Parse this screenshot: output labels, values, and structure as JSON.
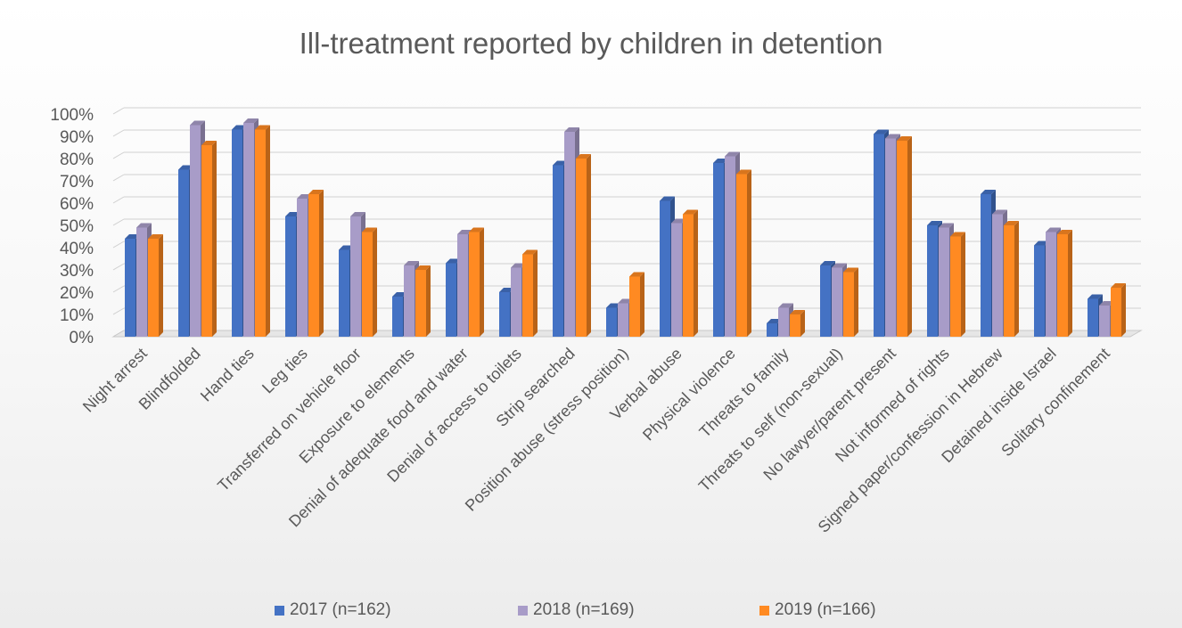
{
  "chart_data": {
    "type": "bar",
    "title": "Ill-treatment reported by children in detention",
    "xlabel": "",
    "ylabel": "",
    "ylim": [
      0,
      100
    ],
    "yticks": [
      "0%",
      "10%",
      "20%",
      "30%",
      "40%",
      "50%",
      "60%",
      "70%",
      "80%",
      "90%",
      "100%"
    ],
    "grid": true,
    "legend_position": "bottom",
    "categories": [
      "Night arrest",
      "Blindfolded",
      "Hand ties",
      "Leg ties",
      "Transferred on vehicle floor",
      "Exposure to elements",
      "Denial of adequate food and water",
      "Denial of access to toilets",
      "Strip searched",
      "Position abuse (stress position)",
      "Verbal abuse",
      "Physical violence",
      "Threats to family",
      "Threats to self (non-sexual)",
      "No lawyer/parent present",
      "Not informed of rights",
      "Signed paper/confession in Hebrew",
      "Detained inside Israel",
      "Solitary confinement"
    ],
    "series": [
      {
        "name": "2017 (n=162)",
        "color": "#4472c4",
        "values": [
          44,
          75,
          93,
          54,
          39,
          18,
          33,
          20,
          77,
          13,
          61,
          78,
          6,
          32,
          91,
          50,
          64,
          41,
          17
        ]
      },
      {
        "name": "2018 (n=169)",
        "color": "#a89cc8",
        "values": [
          49,
          95,
          96,
          62,
          54,
          32,
          46,
          31,
          92,
          15,
          51,
          81,
          13,
          31,
          89,
          49,
          55,
          47,
          14
        ]
      },
      {
        "name": "2019 (n=166)",
        "color": "#ff8a22",
        "values": [
          44,
          86,
          93,
          64,
          47,
          30,
          47,
          37,
          80,
          27,
          55,
          73,
          10,
          29,
          88,
          45,
          50,
          46,
          22
        ]
      }
    ]
  }
}
